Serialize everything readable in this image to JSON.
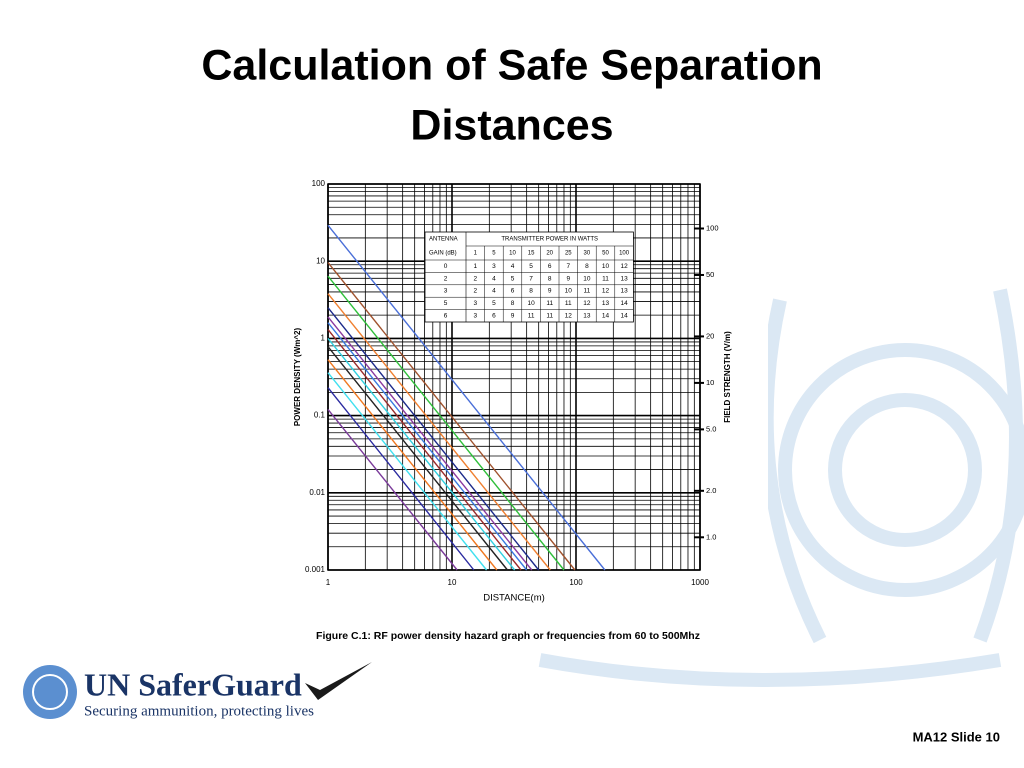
{
  "slide": {
    "title_lines": [
      "Calculation of Safe Separation",
      "Distances"
    ],
    "caption": "Figure C.1: RF power density hazard graph or frequencies from 60 to 500Mhz",
    "logo_name": "UN SaferGuard",
    "logo_tagline": "Securing ammunition, protecting lives",
    "footer": "MA12 Slide 10"
  },
  "chart_data": {
    "type": "line",
    "log_x": true,
    "log_y": true,
    "log_y2": true,
    "grid": true,
    "minor_grid": true,
    "x_label": "DISTANCE(m)",
    "y_label": "POWER DENSITY (Wm^2)",
    "y2_label": "FIELD STRENGTH (V/m)",
    "xlim": [
      1,
      1000
    ],
    "xticks": [
      1,
      10,
      100,
      1000
    ],
    "ylim": [
      0.001,
      100
    ],
    "yticks": [
      100,
      10,
      1,
      0.1,
      0.01,
      0.001
    ],
    "y2lim": [
      0.614,
      194.2
    ],
    "y2ticks": [
      100,
      50,
      20,
      10,
      {
        "value": 5,
        "label": "5.0"
      },
      {
        "value": 2,
        "label": "2.0"
      },
      {
        "value": 1,
        "label": "1.0"
      }
    ],
    "series": [
      {
        "color": "#4a6fd8",
        "x": [
          1,
          171
        ],
        "values": [
          29.2,
          0.001
        ]
      },
      {
        "color": "#a0522d",
        "x": [
          1,
          98
        ],
        "values": [
          9.6,
          0.001
        ]
      },
      {
        "color": "#2fbf3a",
        "x": [
          1,
          80
        ],
        "values": [
          6.4,
          0.001
        ]
      },
      {
        "color": "#f08030",
        "x": [
          1,
          62
        ],
        "values": [
          3.8,
          0.001
        ]
      },
      {
        "color": "#1c2a8a",
        "x": [
          1,
          50
        ],
        "values": [
          2.5,
          0.001
        ]
      },
      {
        "color": "#8a3aa0",
        "x": [
          1,
          44
        ],
        "values": [
          1.9,
          0.001
        ]
      },
      {
        "color": "#3a7ae0",
        "x": [
          1,
          40
        ],
        "values": [
          1.6,
          0.001
        ]
      },
      {
        "color": "#9a2a2a",
        "x": [
          1,
          36
        ],
        "values": [
          1.3,
          0.001
        ]
      },
      {
        "color": "#30d0e0",
        "x": [
          1,
          32
        ],
        "values": [
          1.0,
          0.001
        ]
      },
      {
        "color": "#222222",
        "x": [
          1,
          28
        ],
        "values": [
          0.78,
          0.001
        ]
      },
      {
        "color": "#f07820",
        "x": [
          1,
          23
        ],
        "values": [
          0.53,
          0.001
        ]
      },
      {
        "color": "#40e0f0",
        "x": [
          1,
          19
        ],
        "values": [
          0.36,
          0.001
        ]
      },
      {
        "color": "#2a2aa0",
        "x": [
          1,
          15
        ],
        "values": [
          0.23,
          0.001
        ]
      },
      {
        "color": "#7a3a9a",
        "x": [
          1,
          11
        ],
        "values": [
          0.12,
          0.001
        ]
      }
    ]
  },
  "gain_table": {
    "corner": [
      "ANTENNA",
      "GAIN (dB)"
    ],
    "power_header": "TRANSMITTER POWER IN WATTS",
    "powers": [
      1,
      5,
      10,
      15,
      20,
      25,
      30,
      50,
      100
    ],
    "rows": [
      {
        "gain": 0,
        "values": [
          1,
          3,
          4,
          5,
          6,
          7,
          8,
          10,
          12
        ]
      },
      {
        "gain": 2,
        "values": [
          2,
          4,
          5,
          7,
          8,
          9,
          10,
          11,
          13
        ]
      },
      {
        "gain": 3,
        "values": [
          2,
          4,
          6,
          8,
          9,
          10,
          11,
          12,
          13
        ]
      },
      {
        "gain": 5,
        "values": [
          3,
          5,
          8,
          10,
          11,
          11,
          12,
          13,
          14
        ]
      },
      {
        "gain": 6,
        "values": [
          3,
          6,
          9,
          11,
          11,
          12,
          13,
          14,
          14
        ]
      }
    ]
  }
}
